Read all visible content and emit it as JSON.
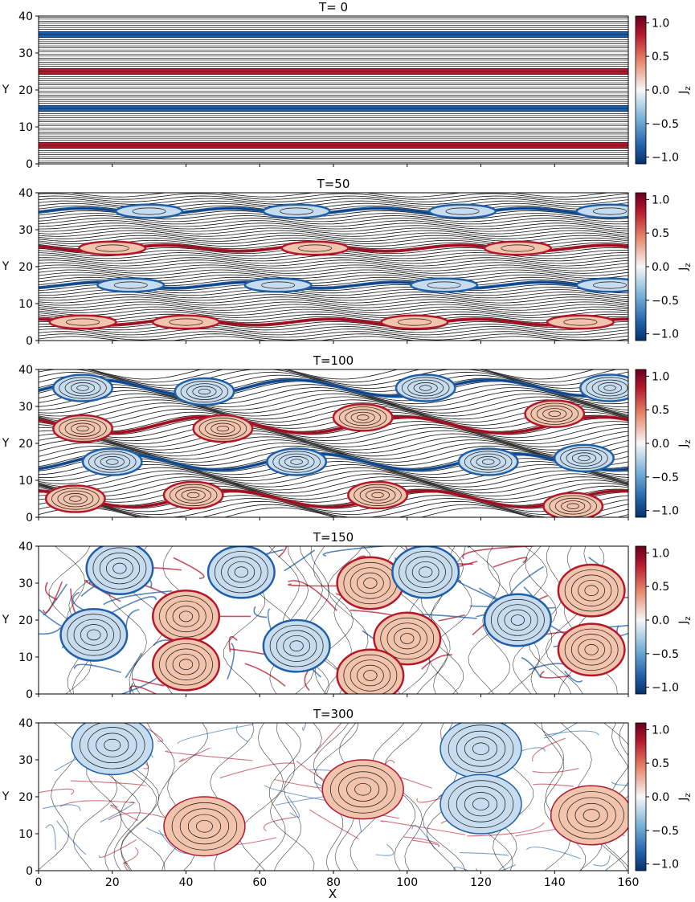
{
  "figure": {
    "x_label": "X",
    "colorbar_label": "J",
    "colorbar_label_sub": "z"
  },
  "colors": {
    "positive": "#b2182b",
    "negative": "#1f5fa8",
    "zero": "#f7f7f7",
    "field_lines": "#111111"
  },
  "chart_data": [
    {
      "type": "heatmap",
      "title": "T= 0",
      "variable": "Jz",
      "xlim": [
        0,
        160
      ],
      "ylim": [
        0,
        40
      ],
      "x_ticks": [
        0,
        20,
        40,
        60,
        80,
        100,
        120,
        140,
        160
      ],
      "y_ticks": [
        0,
        10,
        20,
        30,
        40
      ],
      "ylabel": "Y",
      "colorbar": {
        "range": [
          -1.1,
          1.1
        ],
        "ticks": [
          1.0,
          0.5,
          0.0,
          -0.5,
          -1.0
        ],
        "tick_labels": [
          "1.0",
          "0.5",
          "0.0",
          "−0.5",
          "−1.0"
        ],
        "colormap": "RdBu_r"
      },
      "current_sheets": [
        {
          "y": 5,
          "sign": 1
        },
        {
          "y": 15,
          "sign": -1
        },
        {
          "y": 25,
          "sign": 1
        },
        {
          "y": 35,
          "sign": -1
        }
      ],
      "islands": [],
      "contour_lines": 72,
      "stage": "laminar"
    },
    {
      "type": "heatmap",
      "title": "T=50",
      "variable": "Jz",
      "xlim": [
        0,
        160
      ],
      "ylim": [
        0,
        40
      ],
      "x_ticks": [
        0,
        20,
        40,
        60,
        80,
        100,
        120,
        140,
        160
      ],
      "y_ticks": [
        0,
        10,
        20,
        30,
        40
      ],
      "ylabel": "Y",
      "colorbar": {
        "range": [
          -1.1,
          1.1
        ],
        "ticks": [
          1.0,
          0.5,
          0.0,
          -0.5,
          -1.0
        ],
        "tick_labels": [
          "1.0",
          "0.5",
          "0.0",
          "−0.5",
          "−1.0"
        ],
        "colormap": "RdBu_r"
      },
      "current_sheets": [
        {
          "y": 5,
          "sign": 1
        },
        {
          "y": 15,
          "sign": -1
        },
        {
          "y": 25,
          "sign": 1
        },
        {
          "y": 35,
          "sign": -1
        }
      ],
      "islands": [
        {
          "x": 12,
          "y": 5,
          "sign": 1
        },
        {
          "x": 40,
          "y": 5,
          "sign": 1
        },
        {
          "x": 102,
          "y": 5,
          "sign": 1
        },
        {
          "x": 147,
          "y": 5,
          "sign": 1
        },
        {
          "x": 25,
          "y": 15,
          "sign": -1
        },
        {
          "x": 65,
          "y": 15,
          "sign": -1
        },
        {
          "x": 110,
          "y": 15,
          "sign": -1
        },
        {
          "x": 155,
          "y": 15,
          "sign": -1
        },
        {
          "x": 20,
          "y": 25,
          "sign": 1
        },
        {
          "x": 75,
          "y": 25,
          "sign": 1
        },
        {
          "x": 130,
          "y": 25,
          "sign": 1
        },
        {
          "x": 30,
          "y": 35,
          "sign": -1
        },
        {
          "x": 70,
          "y": 35,
          "sign": -1
        },
        {
          "x": 115,
          "y": 35,
          "sign": -1
        },
        {
          "x": 155,
          "y": 35,
          "sign": -1
        }
      ],
      "contour_lines": 60,
      "stage": "plasmoids"
    },
    {
      "type": "heatmap",
      "title": "T=100",
      "variable": "Jz",
      "xlim": [
        0,
        160
      ],
      "ylim": [
        0,
        40
      ],
      "x_ticks": [
        0,
        20,
        40,
        60,
        80,
        100,
        120,
        140,
        160
      ],
      "y_ticks": [
        0,
        10,
        20,
        30,
        40
      ],
      "ylabel": "Y",
      "colorbar": {
        "range": [
          -1.1,
          1.1
        ],
        "ticks": [
          1.0,
          0.5,
          0.0,
          -0.5,
          -1.0
        ],
        "tick_labels": [
          "1.0",
          "0.5",
          "0.0",
          "−0.5",
          "−1.0"
        ],
        "colormap": "RdBu_r"
      },
      "current_sheets": [
        {
          "y": 5,
          "sign": 1
        },
        {
          "y": 15,
          "sign": -1
        },
        {
          "y": 25,
          "sign": 1
        },
        {
          "y": 35,
          "sign": -1
        }
      ],
      "islands": [
        {
          "x": 10,
          "y": 5,
          "sign": 1
        },
        {
          "x": 42,
          "y": 6,
          "sign": 1
        },
        {
          "x": 92,
          "y": 6,
          "sign": 1
        },
        {
          "x": 145,
          "y": 3,
          "sign": 1
        },
        {
          "x": 20,
          "y": 15,
          "sign": -1
        },
        {
          "x": 70,
          "y": 15,
          "sign": -1
        },
        {
          "x": 122,
          "y": 15,
          "sign": -1
        },
        {
          "x": 148,
          "y": 16,
          "sign": -1
        },
        {
          "x": 12,
          "y": 24,
          "sign": 1
        },
        {
          "x": 50,
          "y": 24,
          "sign": 1
        },
        {
          "x": 88,
          "y": 27,
          "sign": 1
        },
        {
          "x": 140,
          "y": 28,
          "sign": 1
        },
        {
          "x": 12,
          "y": 35,
          "sign": -1
        },
        {
          "x": 45,
          "y": 34,
          "sign": -1
        },
        {
          "x": 105,
          "y": 35,
          "sign": -1
        },
        {
          "x": 155,
          "y": 35,
          "sign": -1
        }
      ],
      "contour_lines": 48,
      "stage": "coalescence"
    },
    {
      "type": "heatmap",
      "title": "T=150",
      "variable": "Jz",
      "xlim": [
        0,
        160
      ],
      "ylim": [
        0,
        40
      ],
      "x_ticks": [
        0,
        20,
        40,
        60,
        80,
        100,
        120,
        140,
        160
      ],
      "y_ticks": [
        0,
        10,
        20,
        30,
        40
      ],
      "ylabel": "Y",
      "colorbar": {
        "range": [
          -1.1,
          1.1
        ],
        "ticks": [
          1.0,
          0.5,
          0.0,
          -0.5,
          -1.0
        ],
        "tick_labels": [
          "1.0",
          "0.5",
          "0.0",
          "−0.5",
          "−1.0"
        ],
        "colormap": "RdBu_r"
      },
      "current_sheets": [],
      "islands": [
        {
          "x": 22,
          "y": 34,
          "sign": -1
        },
        {
          "x": 55,
          "y": 33,
          "sign": -1
        },
        {
          "x": 90,
          "y": 30,
          "sign": 1
        },
        {
          "x": 105,
          "y": 33,
          "sign": -1
        },
        {
          "x": 150,
          "y": 28,
          "sign": 1
        },
        {
          "x": 15,
          "y": 16,
          "sign": -1
        },
        {
          "x": 40,
          "y": 21,
          "sign": 1
        },
        {
          "x": 70,
          "y": 13,
          "sign": -1
        },
        {
          "x": 100,
          "y": 15,
          "sign": 1
        },
        {
          "x": 130,
          "y": 20,
          "sign": -1
        },
        {
          "x": 150,
          "y": 12,
          "sign": 1
        },
        {
          "x": 40,
          "y": 8,
          "sign": 1
        },
        {
          "x": 90,
          "y": 5,
          "sign": 1
        }
      ],
      "contour_lines": 0,
      "stage": "turbulent"
    },
    {
      "type": "heatmap",
      "title": "T=300",
      "variable": "Jz",
      "xlim": [
        0,
        160
      ],
      "ylim": [
        0,
        40
      ],
      "x_ticks": [
        0,
        20,
        40,
        60,
        80,
        100,
        120,
        140,
        160
      ],
      "y_ticks": [
        0,
        10,
        20,
        30,
        40
      ],
      "ylabel": "Y",
      "colorbar": {
        "range": [
          -1.1,
          1.1
        ],
        "ticks": [
          1.0,
          0.5,
          0.0,
          -0.5,
          -1.0
        ],
        "tick_labels": [
          "1.0",
          "0.5",
          "0.0",
          "−0.5",
          "−1.0"
        ],
        "colormap": "RdBu_r"
      },
      "current_sheets": [],
      "islands": [
        {
          "x": 20,
          "y": 34,
          "sign": -1
        },
        {
          "x": 45,
          "y": 12,
          "sign": 1
        },
        {
          "x": 88,
          "y": 22,
          "sign": 1
        },
        {
          "x": 120,
          "y": 33,
          "sign": -1
        },
        {
          "x": 120,
          "y": 18,
          "sign": -1
        },
        {
          "x": 150,
          "y": 15,
          "sign": 1
        }
      ],
      "contour_lines": 0,
      "stage": "decayed"
    }
  ]
}
